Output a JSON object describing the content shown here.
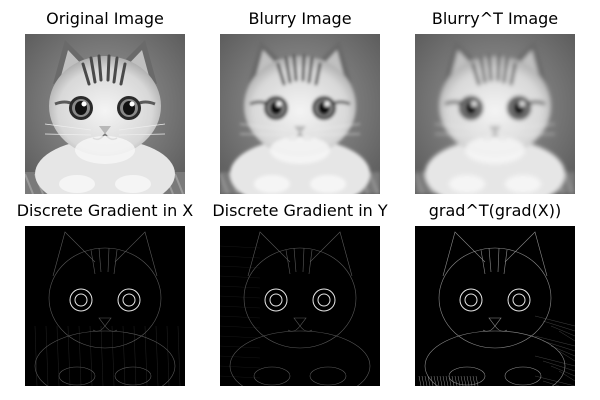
{
  "panels": [
    {
      "title": "Original Image",
      "kind": "photo",
      "blur": 0
    },
    {
      "title": "Blurry Image",
      "kind": "photo",
      "blur": 1.6
    },
    {
      "title": "Blurry^T Image",
      "kind": "photo",
      "blur": 2.0
    },
    {
      "title": "Discrete Gradient in X",
      "kind": "gradient",
      "blur": 0
    },
    {
      "title": "Discrete Gradient in Y",
      "kind": "gradient",
      "blur": 0
    },
    {
      "title": "grad^T(grad(X))",
      "kind": "gradient",
      "blur": 0
    }
  ]
}
